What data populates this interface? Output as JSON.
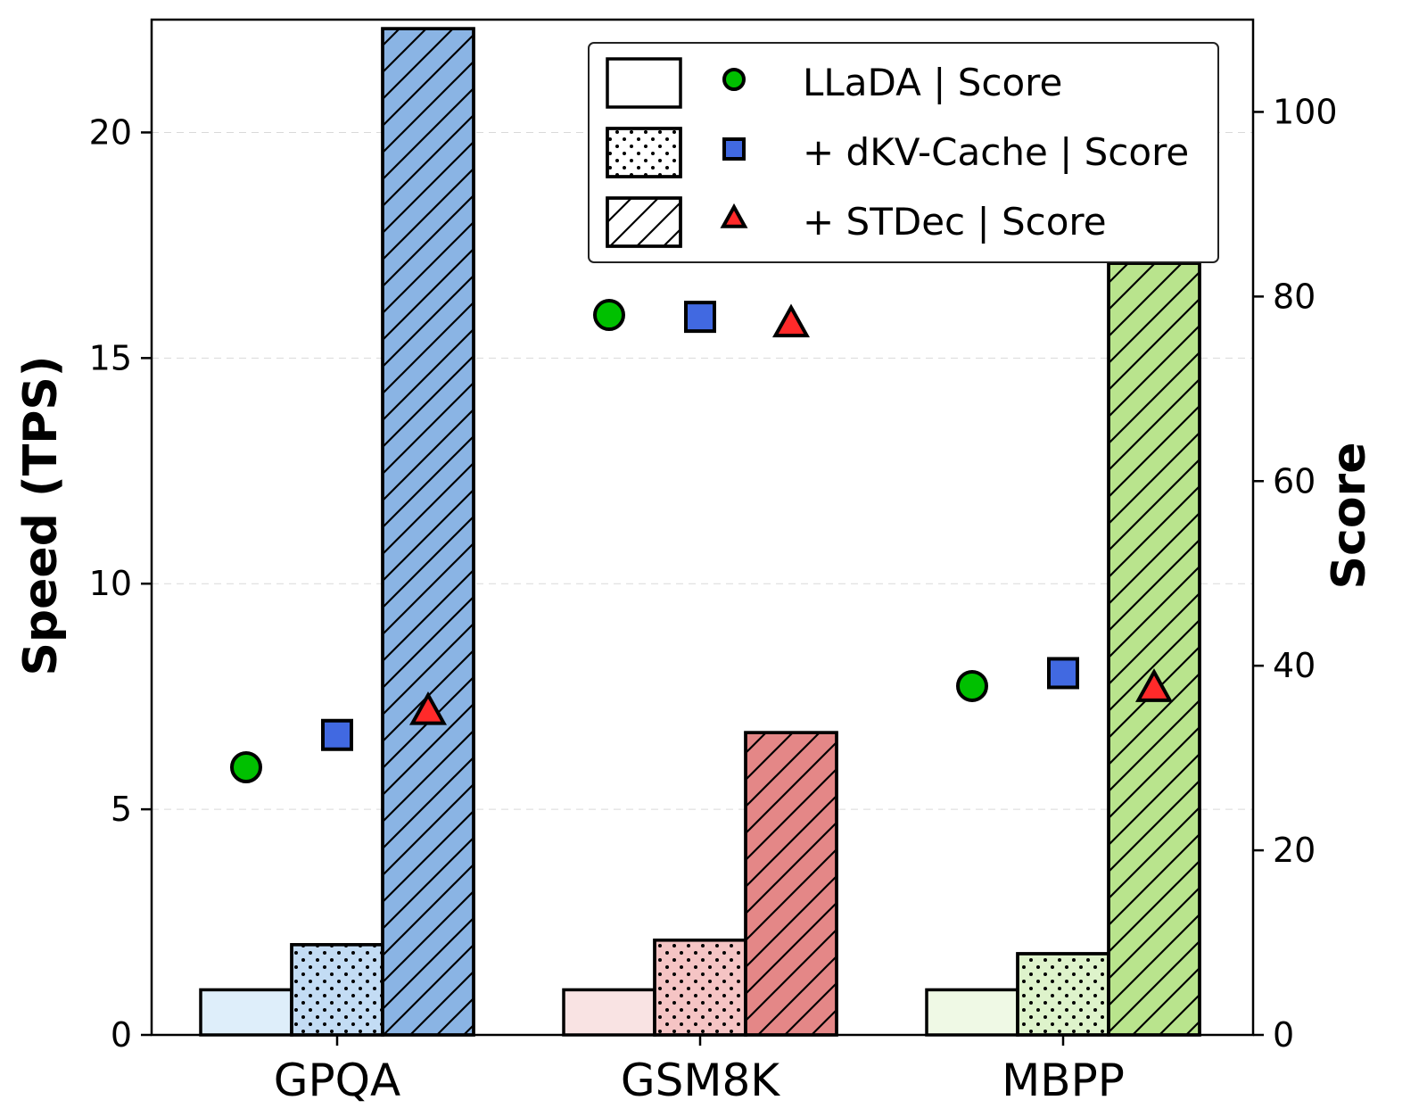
{
  "chart_data": {
    "type": "bar",
    "categories": [
      "GPQA",
      "GSM8K",
      "MBPP"
    ],
    "ylabel_left": "Speed (TPS)",
    "ylabel_right": "Score",
    "ylim_left": [
      0,
      22.5
    ],
    "ylim_right": [
      0,
      110
    ],
    "yticks_left": [
      0,
      5,
      10,
      15,
      20
    ],
    "yticks_right": [
      0,
      20,
      40,
      60,
      80,
      100
    ],
    "grid": "horizontal dashed",
    "legend_position": "top-right",
    "speed_series": [
      {
        "name": "LLaDA",
        "pattern": "none",
        "values": [
          1.0,
          1.0,
          1.0
        ]
      },
      {
        "name": "+ dKV-Cache",
        "pattern": "dots",
        "values": [
          2.0,
          2.1,
          1.8
        ]
      },
      {
        "name": "+ STDec",
        "pattern": "hatch",
        "values": [
          22.3,
          6.7,
          17.1
        ]
      }
    ],
    "score_series": [
      {
        "name": "LLaDA | Score",
        "marker": "circle",
        "color": "#00c000",
        "values": [
          29.0,
          78.0,
          37.8
        ]
      },
      {
        "name": "+ dKV-Cache | Score",
        "marker": "square",
        "color": "#4169e1",
        "values": [
          32.5,
          77.8,
          39.2
        ]
      },
      {
        "name": "+ STDec | Score",
        "marker": "triangle",
        "color": "#ff2a2a",
        "values": [
          35.0,
          77.0,
          37.5
        ]
      }
    ],
    "category_colors": {
      "GPQA": [
        "#deeefa",
        "#c3dcf4",
        "#8ab4e4"
      ],
      "GSM8K": [
        "#f9e3e3",
        "#f5c4c4",
        "#e48787"
      ],
      "MBPP": [
        "#eff9e5",
        "#def3cb",
        "#b9e48d"
      ]
    },
    "legend": [
      {
        "patch": "none",
        "marker": "circle",
        "color": "#00c000",
        "label": "LLaDA | Score"
      },
      {
        "patch": "dots",
        "marker": "square",
        "color": "#4169e1",
        "label": "+ dKV-Cache | Score"
      },
      {
        "patch": "hatch",
        "marker": "triangle",
        "color": "#ff2a2a",
        "label": "+ STDec | Score"
      }
    ]
  }
}
